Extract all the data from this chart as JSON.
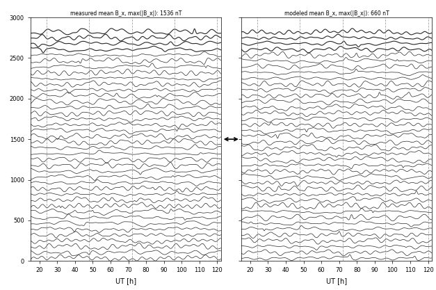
{
  "title_left": "measured mean B_x, max(|B_x|): 1536 nT",
  "title_right": "modeled mean B_x, max(|B_x|): 660 nT",
  "xlabel": "UT [h]",
  "xlim": [
    15,
    122
  ],
  "ylim": [
    0,
    3000
  ],
  "yticks": [
    0,
    500,
    1000,
    1500,
    2000,
    2500,
    3000
  ],
  "xticks": [
    20,
    30,
    40,
    50,
    60,
    70,
    80,
    90,
    100,
    110,
    120
  ],
  "dashed_lines": [
    24,
    48,
    72,
    96,
    120
  ],
  "n_traces": 40,
  "x_start": 15,
  "x_end": 122,
  "n_points": 500,
  "background_color": "#ffffff",
  "line_color": "#000000"
}
